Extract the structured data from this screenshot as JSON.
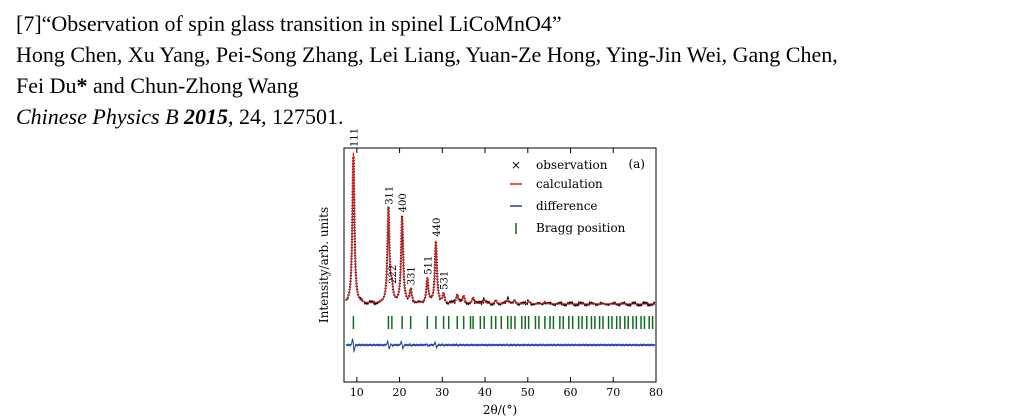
{
  "citation": {
    "title_line": "[7]“Observation of spin glass transition in spinel LiCoMnO4”",
    "authors_line1": "Hong Chen, Xu Yang, Pei-Song Zhang, Lei Liang, Yuan-Ze Hong, Ying-Jin Wei, Gang Chen,",
    "authors_line2_a": "Fei Du",
    "authors_line2_star": "*",
    "authors_line2_b": " and Chun-Zhong Wang",
    "journal": "Chinese Physics B",
    "year": "2015",
    "rest": ", 24, 127501."
  },
  "chart_data": {
    "type": "line",
    "panel_label": "(a)",
    "xlabel": "2θ/(°)",
    "ylabel": "Intensity/arb. units",
    "xlim": [
      7,
      80
    ],
    "xticks": [
      10,
      20,
      30,
      40,
      50,
      60,
      70,
      80
    ],
    "grid": false,
    "legend_position": "top-right",
    "legend": [
      "observation",
      "calculation",
      "difference",
      "Bragg position"
    ],
    "colors": {
      "observation": "#000000",
      "calculation": "#e02020",
      "difference": "#1f3fa8",
      "bragg": "#0f6b1f"
    },
    "peaks": [
      {
        "x": 9.2,
        "y": 1.0,
        "label": "111"
      },
      {
        "x": 17.4,
        "y": 0.62,
        "label": "311"
      },
      {
        "x": 18.2,
        "y": 0.1,
        "label": "222"
      },
      {
        "x": 20.6,
        "y": 0.57,
        "label": "400"
      },
      {
        "x": 22.6,
        "y": 0.09,
        "label": "331"
      },
      {
        "x": 26.5,
        "y": 0.16,
        "label": "511"
      },
      {
        "x": 28.5,
        "y": 0.41,
        "label": "440"
      },
      {
        "x": 30.3,
        "y": 0.06,
        "label": "531"
      },
      {
        "x": 33.5,
        "y": 0.06
      },
      {
        "x": 35.0,
        "y": 0.05
      },
      {
        "x": 37.2,
        "y": 0.04
      },
      {
        "x": 39.8,
        "y": 0.03
      },
      {
        "x": 42.5,
        "y": 0.025
      },
      {
        "x": 45.3,
        "y": 0.03
      },
      {
        "x": 47.0,
        "y": 0.02
      },
      {
        "x": 50.2,
        "y": 0.02
      },
      {
        "x": 54.0,
        "y": 0.015
      }
    ],
    "bragg_positions": [
      9.2,
      17.4,
      18.2,
      20.6,
      22.6,
      26.5,
      28.5,
      30.3,
      31.5,
      33.5,
      35.0,
      36.6,
      37.2,
      38.9,
      39.8,
      41.5,
      42.5,
      43.8,
      45.3,
      46.1,
      47.0,
      48.6,
      49.4,
      50.2,
      51.8,
      52.6,
      54.0,
      55.2,
      56.0,
      57.5,
      58.3,
      59.6,
      60.5,
      61.9,
      62.7,
      63.8,
      64.9,
      65.7,
      66.8,
      67.6,
      68.9,
      69.7,
      70.8,
      71.6,
      72.7,
      73.5,
      74.6,
      75.4,
      76.5,
      77.3,
      78.4,
      79.2
    ]
  }
}
